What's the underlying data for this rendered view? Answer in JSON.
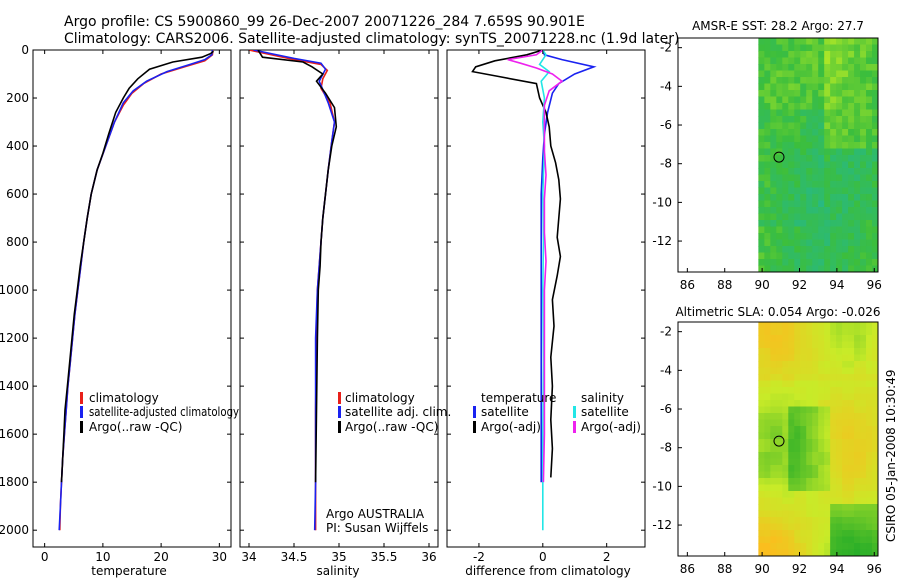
{
  "header": {
    "line1": "Argo profile: CS 5900860_99 26-Dec-2007 20071226_284 7.659S 90.901E",
    "line2": "Climatology: CARS2006. Satellite-adjusted climatology: synTS_20071228.nc (1.9d later)"
  },
  "side_label": "CSIRO 05-Jan-2008 10:30:49",
  "credit": {
    "line1": "Argo AUSTRALIA",
    "line2": "PI: Susan Wijffels"
  },
  "colors": {
    "red": "#e8201a",
    "blue": "#1a22f0",
    "black": "#000000",
    "cyan": "#22e6e6",
    "magenta": "#ee22ee"
  },
  "chart_data": [
    {
      "type": "line",
      "id": "temperature",
      "xlabel": "temperature",
      "ylabel": "",
      "xlim": [
        -2,
        32
      ],
      "ylim": [
        2070,
        0
      ],
      "xticks": [
        0,
        10,
        20,
        30
      ],
      "yticks": [
        0,
        200,
        400,
        600,
        800,
        1000,
        1200,
        1400,
        1600,
        1800,
        2000
      ],
      "legend": [
        "climatology",
        "satellite-adjusted climatology",
        "Argo(..raw -QC)"
      ],
      "series": [
        {
          "name": "climatology",
          "color": "red",
          "points": [
            [
              28.9,
              0
            ],
            [
              28.8,
              20
            ],
            [
              27.5,
              45
            ],
            [
              24,
              70
            ],
            [
              20,
              100
            ],
            [
              17,
              140
            ],
            [
              15,
              180
            ],
            [
              13.5,
              230
            ],
            [
              12,
              300
            ],
            [
              10.5,
              400
            ],
            [
              9,
              500
            ],
            [
              8,
              600
            ],
            [
              7.3,
              700
            ],
            [
              6.7,
              800
            ],
            [
              6.2,
              900
            ],
            [
              5.7,
              1000
            ],
            [
              5.2,
              1100
            ],
            [
              4.8,
              1200
            ],
            [
              4.4,
              1300
            ],
            [
              4.0,
              1400
            ],
            [
              3.7,
              1500
            ],
            [
              3.4,
              1600
            ],
            [
              3.1,
              1700
            ],
            [
              2.9,
              1800
            ],
            [
              2.7,
              1900
            ],
            [
              2.6,
              2000
            ]
          ]
        },
        {
          "name": "satellite-adjusted climatology",
          "color": "blue",
          "points": [
            [
              28.8,
              0
            ],
            [
              28.7,
              20
            ],
            [
              27.5,
              40
            ],
            [
              25,
              60
            ],
            [
              21,
              90
            ],
            [
              17.5,
              130
            ],
            [
              15.2,
              170
            ],
            [
              13.5,
              220
            ],
            [
              12,
              300
            ],
            [
              10.5,
              400
            ],
            [
              9,
              500
            ],
            [
              8,
              600
            ],
            [
              7.3,
              700
            ],
            [
              6.7,
              800
            ],
            [
              6.2,
              900
            ],
            [
              5.7,
              1000
            ],
            [
              5.2,
              1100
            ],
            [
              4.8,
              1200
            ],
            [
              4.4,
              1300
            ],
            [
              4.0,
              1400
            ],
            [
              3.7,
              1500
            ],
            [
              3.4,
              1600
            ],
            [
              3.1,
              1700
            ],
            [
              2.9,
              1800
            ],
            [
              2.7,
              1900
            ],
            [
              2.5,
              2000
            ]
          ]
        },
        {
          "name": "Argo(..raw -QC)",
          "color": "black",
          "points": [
            [
              29.0,
              5
            ],
            [
              28.5,
              15
            ],
            [
              27,
              30
            ],
            [
              22,
              50
            ],
            [
              18,
              80
            ],
            [
              16,
              120
            ],
            [
              14.5,
              160
            ],
            [
              13.5,
              200
            ],
            [
              12.2,
              260
            ],
            [
              11,
              350
            ],
            [
              10,
              430
            ],
            [
              9,
              500
            ],
            [
              8,
              600
            ],
            [
              7.3,
              700
            ],
            [
              6.7,
              800
            ],
            [
              6.1,
              900
            ],
            [
              5.6,
              1000
            ],
            [
              5.1,
              1100
            ],
            [
              4.7,
              1200
            ],
            [
              4.3,
              1300
            ],
            [
              3.9,
              1400
            ],
            [
              3.5,
              1500
            ],
            [
              3.3,
              1600
            ],
            [
              3.1,
              1700
            ],
            [
              2.9,
              1800
            ]
          ]
        }
      ]
    },
    {
      "type": "line",
      "id": "salinity",
      "xlabel": "salinity",
      "ylabel": "",
      "xlim": [
        33.9,
        36.1
      ],
      "ylim": [
        2070,
        0
      ],
      "xticks": [
        34,
        34.5,
        35,
        35.5,
        36
      ],
      "legend": [
        "climatology",
        "satellite adj. clim.",
        "Argo(..raw -QC)"
      ],
      "series": [
        {
          "name": "climatology",
          "color": "red",
          "points": [
            [
              34.0,
              0
            ],
            [
              34.5,
              40
            ],
            [
              34.8,
              60
            ],
            [
              34.87,
              85
            ],
            [
              34.82,
              120
            ],
            [
              34.8,
              160
            ],
            [
              34.9,
              220
            ],
            [
              34.95,
              300
            ],
            [
              34.92,
              380
            ],
            [
              34.88,
              500
            ],
            [
              34.85,
              600
            ],
            [
              34.82,
              700
            ],
            [
              34.8,
              800
            ],
            [
              34.78,
              900
            ],
            [
              34.76,
              1000
            ],
            [
              34.75,
              1200
            ],
            [
              34.74,
              1500
            ],
            [
              34.74,
              2000
            ]
          ]
        },
        {
          "name": "satellite adj. clim.",
          "color": "blue",
          "points": [
            [
              34.05,
              0
            ],
            [
              34.5,
              35
            ],
            [
              34.8,
              55
            ],
            [
              34.85,
              80
            ],
            [
              34.78,
              130
            ],
            [
              34.82,
              165
            ],
            [
              34.88,
              220
            ],
            [
              34.95,
              300
            ],
            [
              34.92,
              380
            ],
            [
              34.88,
              500
            ],
            [
              34.85,
              600
            ],
            [
              34.82,
              700
            ],
            [
              34.8,
              800
            ],
            [
              34.78,
              900
            ],
            [
              34.76,
              1000
            ],
            [
              34.74,
              1200
            ],
            [
              34.74,
              1500
            ],
            [
              34.74,
              1800
            ],
            [
              34.73,
              2000
            ]
          ]
        },
        {
          "name": "Argo(..raw -QC)",
          "color": "black",
          "points": [
            [
              34.1,
              0
            ],
            [
              34.15,
              30
            ],
            [
              34.6,
              50
            ],
            [
              34.7,
              70
            ],
            [
              34.82,
              100
            ],
            [
              34.75,
              130
            ],
            [
              34.85,
              180
            ],
            [
              34.95,
              240
            ],
            [
              34.97,
              320
            ],
            [
              34.92,
              400
            ],
            [
              34.88,
              500
            ],
            [
              34.85,
              600
            ],
            [
              34.82,
              700
            ],
            [
              34.8,
              800
            ],
            [
              34.79,
              900
            ],
            [
              34.77,
              1000
            ],
            [
              34.76,
              1200
            ],
            [
              34.75,
              1500
            ],
            [
              34.74,
              1800
            ]
          ]
        }
      ]
    },
    {
      "type": "line",
      "id": "difference",
      "xlabel": "difference from climatology",
      "ylabel": "",
      "xlim": [
        -3,
        3.2
      ],
      "ylim": [
        2070,
        0
      ],
      "xticks": [
        -2,
        0,
        2
      ],
      "legend": [
        "temperature",
        "satellite",
        "Argo(-adj)",
        "salinity",
        "satellite",
        "Argo(-adj)"
      ],
      "series": [
        {
          "name": "temperature satellite",
          "color": "blue",
          "points": [
            [
              0,
              0
            ],
            [
              0.05,
              20
            ],
            [
              0.6,
              40
            ],
            [
              1.6,
              70
            ],
            [
              1.0,
              100
            ],
            [
              0.5,
              140
            ],
            [
              0.3,
              180
            ],
            [
              0.15,
              260
            ],
            [
              0.05,
              350
            ],
            [
              0,
              450
            ],
            [
              -0.05,
              600
            ],
            [
              -0.05,
              800
            ],
            [
              -0.05,
              1000
            ],
            [
              -0.05,
              1200
            ],
            [
              -0.05,
              1400
            ],
            [
              -0.05,
              1600
            ],
            [
              -0.05,
              1800
            ]
          ]
        },
        {
          "name": "temperature Argo(-adj)",
          "color": "black",
          "points": [
            [
              0,
              0
            ],
            [
              -0.5,
              20
            ],
            [
              -1.5,
              45
            ],
            [
              -2.1,
              70
            ],
            [
              -2.2,
              90
            ],
            [
              -1.4,
              110
            ],
            [
              -0.2,
              140
            ],
            [
              -0.1,
              200
            ],
            [
              0.1,
              260
            ],
            [
              0.2,
              320
            ],
            [
              0.25,
              400
            ],
            [
              0.4,
              470
            ],
            [
              0.5,
              540
            ],
            [
              0.55,
              620
            ],
            [
              0.5,
              700
            ],
            [
              0.45,
              780
            ],
            [
              0.55,
              860
            ],
            [
              0.45,
              940
            ],
            [
              0.3,
              1040
            ],
            [
              0.35,
              1150
            ],
            [
              0.25,
              1280
            ],
            [
              0.3,
              1400
            ],
            [
              0.25,
              1540
            ],
            [
              0.3,
              1660
            ],
            [
              0.25,
              1780
            ]
          ]
        },
        {
          "name": "salinity satellite",
          "color": "cyan",
          "points": [
            [
              0,
              0
            ],
            [
              0.1,
              20
            ],
            [
              -0.1,
              60
            ],
            [
              0.2,
              90
            ],
            [
              -0.05,
              130
            ],
            [
              0.05,
              200
            ],
            [
              0,
              300
            ],
            [
              0.05,
              400
            ],
            [
              0,
              600
            ],
            [
              0.02,
              800
            ],
            [
              0,
              1000
            ],
            [
              0.02,
              1300
            ],
            [
              0,
              1600
            ],
            [
              0,
              2000
            ]
          ]
        },
        {
          "name": "salinity Argo(-adj)",
          "color": "magenta",
          "points": [
            [
              0,
              0
            ],
            [
              -0.2,
              20
            ],
            [
              -1.1,
              40
            ],
            [
              -0.7,
              55
            ],
            [
              -0.2,
              75
            ],
            [
              0.3,
              100
            ],
            [
              0.6,
              130
            ],
            [
              0.2,
              170
            ],
            [
              0.05,
              230
            ],
            [
              0.05,
              300
            ],
            [
              0.05,
              420
            ],
            [
              0.1,
              520
            ],
            [
              0.05,
              620
            ],
            [
              0.05,
              760
            ],
            [
              0.1,
              880
            ],
            [
              0.05,
              1000
            ],
            [
              0.05,
              1200
            ],
            [
              0.05,
              1400
            ],
            [
              0.05,
              1600
            ],
            [
              0.02,
              1800
            ]
          ]
        }
      ]
    },
    {
      "type": "heatmap",
      "id": "sst",
      "title": "AMSR-E SST: 28.2 Argo: 27.7",
      "xlim": [
        85.5,
        96.2
      ],
      "ylim": [
        -13.6,
        -1.5
      ],
      "xticks": [
        86,
        88,
        90,
        92,
        94,
        96
      ],
      "yticks": [
        -2,
        -4,
        -6,
        -8,
        -10,
        -12
      ],
      "data_xrange": [
        89.8,
        96.2
      ],
      "argo_position": [
        90.901,
        -7.659
      ]
    },
    {
      "type": "heatmap",
      "id": "sla",
      "title": "Altimetric SLA: 0.054 Argo: -0.026",
      "xlim": [
        85.5,
        96.2
      ],
      "ylim": [
        -13.6,
        -1.5
      ],
      "xticks": [
        86,
        88,
        90,
        92,
        94,
        96
      ],
      "yticks": [
        -2,
        -4,
        -6,
        -8,
        -10,
        -12
      ],
      "data_xrange": [
        89.8,
        96.2
      ],
      "argo_position": [
        90.901,
        -7.659
      ]
    }
  ]
}
